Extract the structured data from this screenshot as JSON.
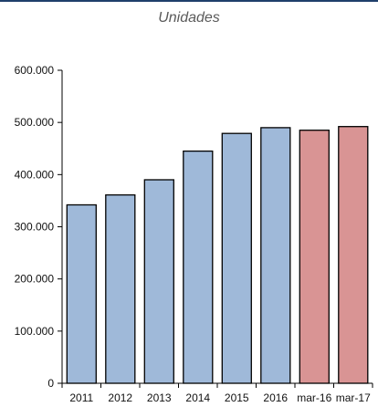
{
  "chart_data": {
    "type": "bar",
    "title": "Unidades",
    "categories": [
      "2011",
      "2012",
      "2013",
      "2014",
      "2015",
      "2016",
      "mar-16",
      "mar-17"
    ],
    "values": [
      342000,
      361000,
      390000,
      445000,
      479000,
      490000,
      485000,
      492000
    ],
    "bar_colors": [
      "#9fb9d9",
      "#9fb9d9",
      "#9fb9d9",
      "#9fb9d9",
      "#9fb9d9",
      "#9fb9d9",
      "#d99494",
      "#d99494"
    ],
    "ylim": [
      0,
      600000
    ],
    "yticks": [
      0,
      100000,
      200000,
      300000,
      400000,
      500000,
      600000
    ],
    "ytick_labels": [
      "0",
      "100.000",
      "200.000",
      "300.000",
      "400.000",
      "500.000",
      "600.000"
    ],
    "xlabel": "",
    "ylabel": "",
    "grid": false,
    "legend": "none"
  }
}
